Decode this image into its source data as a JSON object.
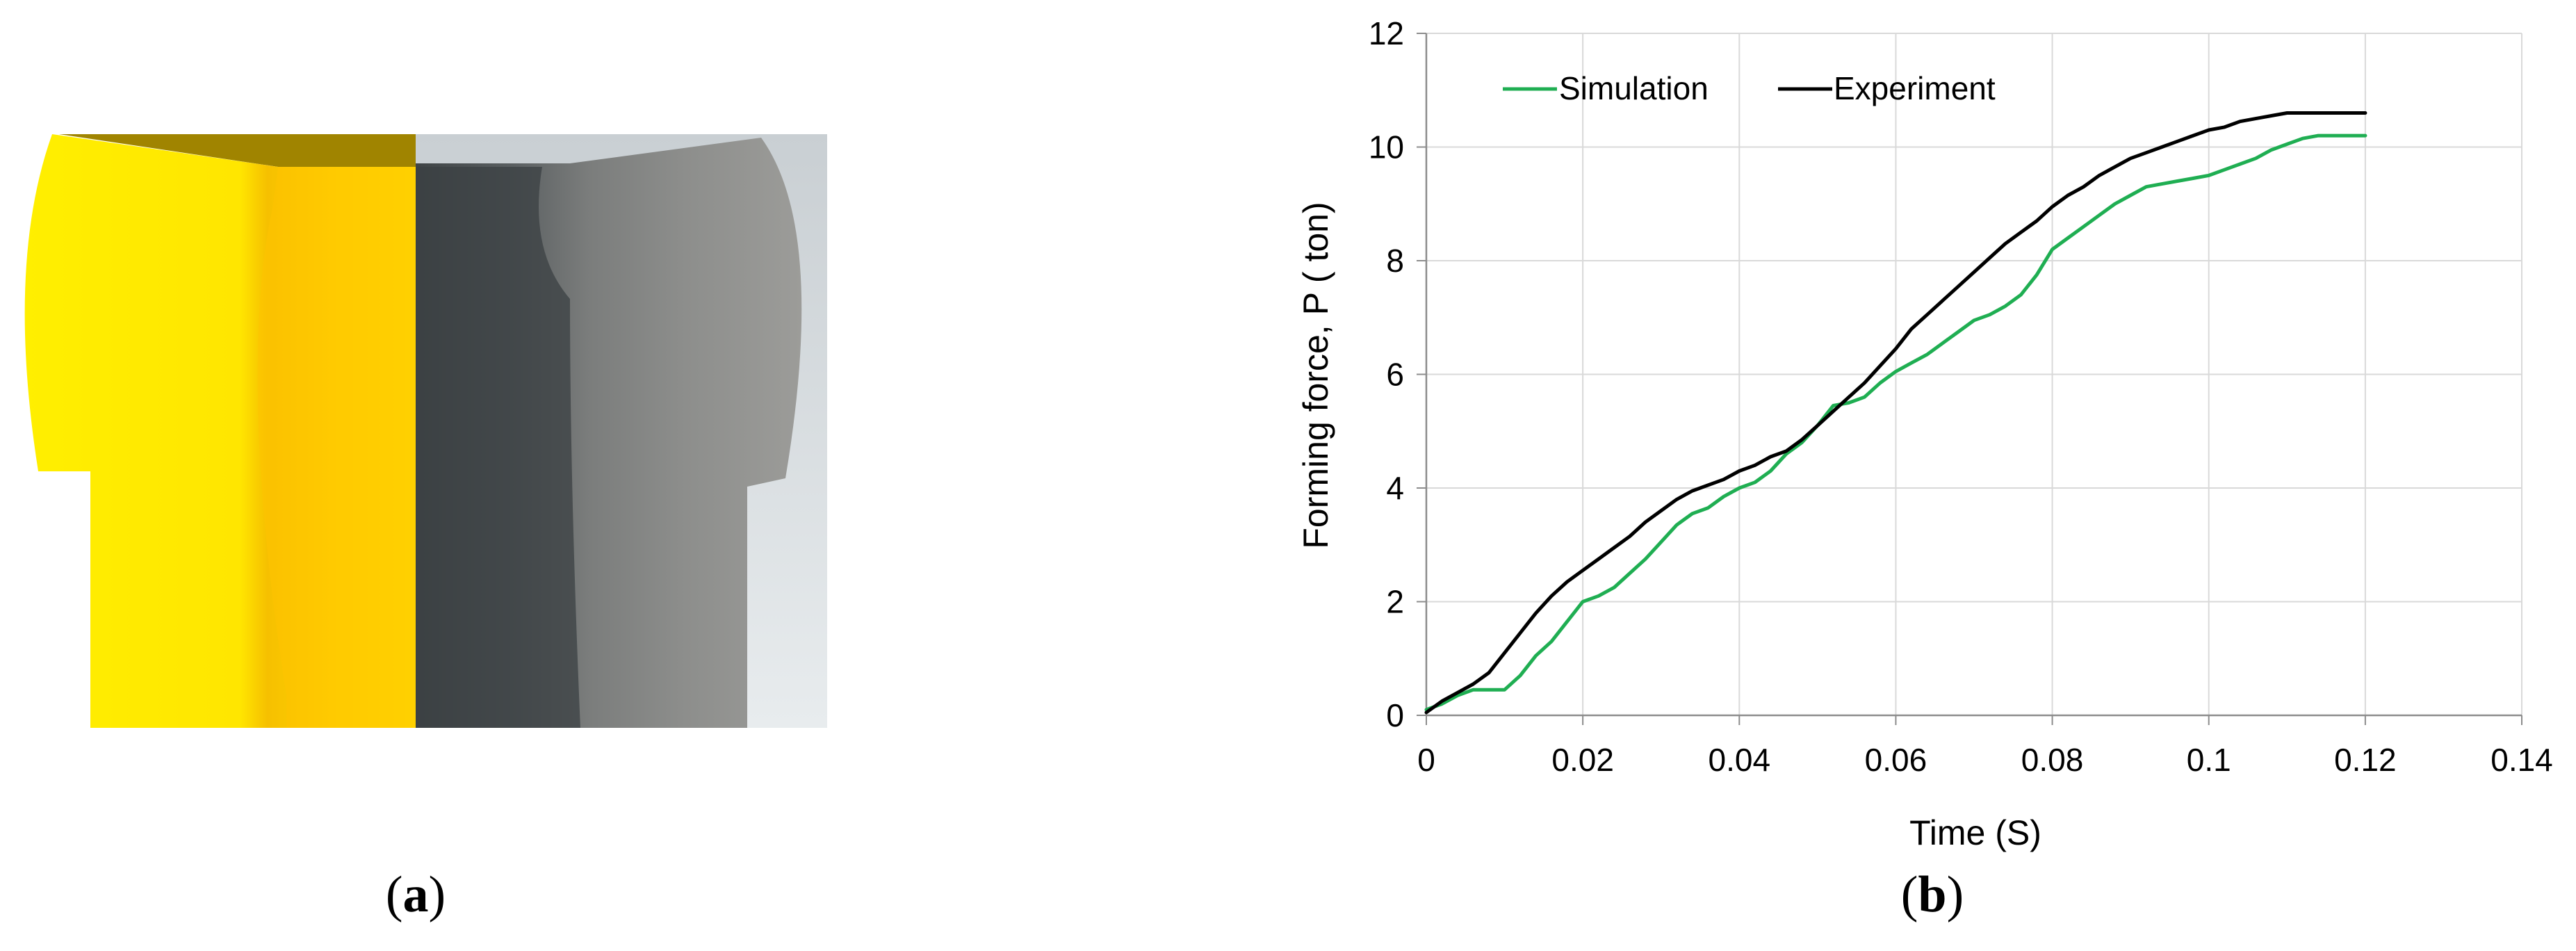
{
  "panels": {
    "a": {
      "label_open": "(",
      "label_letter": "a",
      "label_close": ")"
    },
    "b": {
      "label_open": "(",
      "label_letter": "b",
      "label_close": ")"
    }
  },
  "colors": {
    "simulation": "#1fae52",
    "experiment": "#000000",
    "grid": "#d9d9d9",
    "axis": "#8c8c8c",
    "yellow_light": "#fff200",
    "yellow_dark": "#f2b800",
    "steel": "#8a8a88"
  },
  "chart_data": {
    "type": "line",
    "title": "",
    "xlabel": "Time (S)",
    "ylabel": "Forming force, P ( ton)",
    "xlim": [
      0,
      0.14
    ],
    "ylim": [
      0,
      12
    ],
    "x_ticks": [
      "0",
      "0.02",
      "0.04",
      "0.06",
      "0.08",
      "0.1",
      "0.12",
      "0.14"
    ],
    "y_ticks": [
      "0",
      "2",
      "4",
      "6",
      "8",
      "10",
      "12"
    ],
    "grid": true,
    "legend_position": "top-left",
    "series": [
      {
        "name": "Simulation",
        "x": [
          0,
          0.002,
          0.004,
          0.006,
          0.008,
          0.01,
          0.012,
          0.014,
          0.016,
          0.018,
          0.02,
          0.022,
          0.024,
          0.026,
          0.028,
          0.03,
          0.032,
          0.034,
          0.036,
          0.038,
          0.04,
          0.042,
          0.044,
          0.046,
          0.048,
          0.05,
          0.052,
          0.054,
          0.056,
          0.058,
          0.06,
          0.062,
          0.064,
          0.066,
          0.068,
          0.07,
          0.072,
          0.074,
          0.076,
          0.078,
          0.08,
          0.082,
          0.084,
          0.086,
          0.088,
          0.09,
          0.092,
          0.094,
          0.096,
          0.098,
          0.1,
          0.102,
          0.104,
          0.106,
          0.108,
          0.11,
          0.112,
          0.114,
          0.116,
          0.118,
          0.12
        ],
        "y": [
          0.1,
          0.2,
          0.35,
          0.45,
          0.45,
          0.45,
          0.7,
          1.05,
          1.3,
          1.65,
          2.0,
          2.1,
          2.25,
          2.5,
          2.75,
          3.05,
          3.35,
          3.55,
          3.65,
          3.85,
          4.0,
          4.1,
          4.3,
          4.6,
          4.8,
          5.1,
          5.45,
          5.5,
          5.6,
          5.85,
          6.05,
          6.2,
          6.35,
          6.55,
          6.75,
          6.95,
          7.05,
          7.2,
          7.4,
          7.75,
          8.2,
          8.4,
          8.6,
          8.8,
          9.0,
          9.15,
          9.3,
          9.35,
          9.4,
          9.45,
          9.5,
          9.6,
          9.7,
          9.8,
          9.95,
          10.05,
          10.15,
          10.2,
          10.2,
          10.2,
          10.2
        ]
      },
      {
        "name": "Experiment",
        "x": [
          0,
          0.002,
          0.004,
          0.006,
          0.008,
          0.01,
          0.012,
          0.014,
          0.016,
          0.018,
          0.02,
          0.022,
          0.024,
          0.026,
          0.028,
          0.03,
          0.032,
          0.034,
          0.036,
          0.038,
          0.04,
          0.042,
          0.044,
          0.046,
          0.048,
          0.05,
          0.052,
          0.054,
          0.056,
          0.058,
          0.06,
          0.062,
          0.064,
          0.066,
          0.068,
          0.07,
          0.072,
          0.074,
          0.076,
          0.078,
          0.08,
          0.082,
          0.084,
          0.086,
          0.088,
          0.09,
          0.092,
          0.094,
          0.096,
          0.098,
          0.1,
          0.102,
          0.104,
          0.106,
          0.108,
          0.11,
          0.112,
          0.114,
          0.116,
          0.118,
          0.12
        ],
        "y": [
          0.05,
          0.25,
          0.4,
          0.55,
          0.75,
          1.1,
          1.45,
          1.8,
          2.1,
          2.35,
          2.55,
          2.75,
          2.95,
          3.15,
          3.4,
          3.6,
          3.8,
          3.95,
          4.05,
          4.15,
          4.3,
          4.4,
          4.55,
          4.65,
          4.85,
          5.1,
          5.35,
          5.6,
          5.85,
          6.15,
          6.45,
          6.8,
          7.05,
          7.3,
          7.55,
          7.8,
          8.05,
          8.3,
          8.5,
          8.7,
          8.95,
          9.15,
          9.3,
          9.5,
          9.65,
          9.8,
          9.9,
          10.0,
          10.1,
          10.2,
          10.3,
          10.35,
          10.45,
          10.5,
          10.55,
          10.6,
          10.6,
          10.6,
          10.6,
          10.6,
          10.6
        ]
      }
    ]
  }
}
